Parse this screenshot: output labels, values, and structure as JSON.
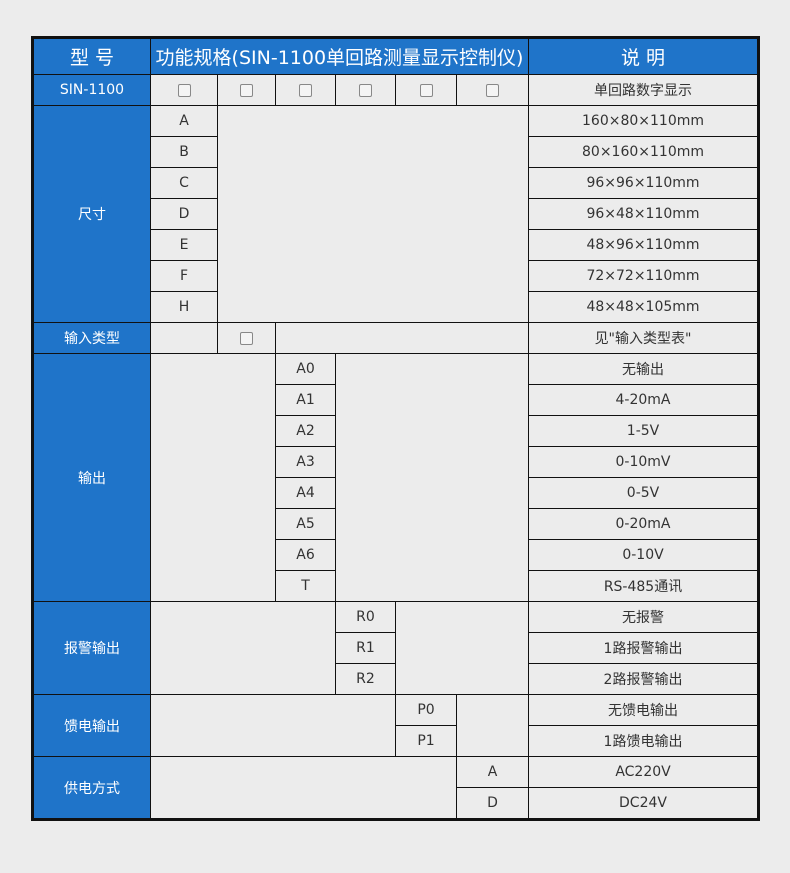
{
  "header": {
    "model": "型 号",
    "spec": "功能规格(SIN-1100单回路测量显示控制仪)",
    "desc": "说 明"
  },
  "model_row": {
    "label": "SIN-1100",
    "desc": "单回路数字显示"
  },
  "size": {
    "label": "尺寸",
    "codes": [
      "A",
      "B",
      "C",
      "D",
      "E",
      "F",
      "H"
    ],
    "descs": [
      "160×80×110mm",
      "80×160×110mm",
      "96×96×110mm",
      "96×48×110mm",
      "48×96×110mm",
      "72×72×110mm",
      "48×48×105mm"
    ]
  },
  "input": {
    "label": "输入类型",
    "desc": "见\"输入类型表\""
  },
  "output": {
    "label": "输出",
    "codes": [
      "A0",
      "A1",
      "A2",
      "A3",
      "A4",
      "A5",
      "A6",
      "T"
    ],
    "descs": [
      "无输出",
      "4-20mA",
      "1-5V",
      "0-10mV",
      "0-5V",
      "0-20mA",
      "0-10V",
      "RS-485通讯"
    ]
  },
  "alarm": {
    "label": "报警输出",
    "codes": [
      "R0",
      "R1",
      "R2"
    ],
    "descs": [
      "无报警",
      "1路报警输出",
      "2路报警输出"
    ]
  },
  "feed": {
    "label": "馈电输出",
    "codes": [
      "P0",
      "P1"
    ],
    "descs": [
      "无馈电输出",
      "1路馈电输出"
    ]
  },
  "power": {
    "label": "供电方式",
    "codes": [
      "A",
      "D"
    ],
    "descs": [
      "AC220V",
      "DC24V"
    ]
  },
  "colors": {
    "header_blue": "#1f74c9",
    "background": "#ececec"
  }
}
